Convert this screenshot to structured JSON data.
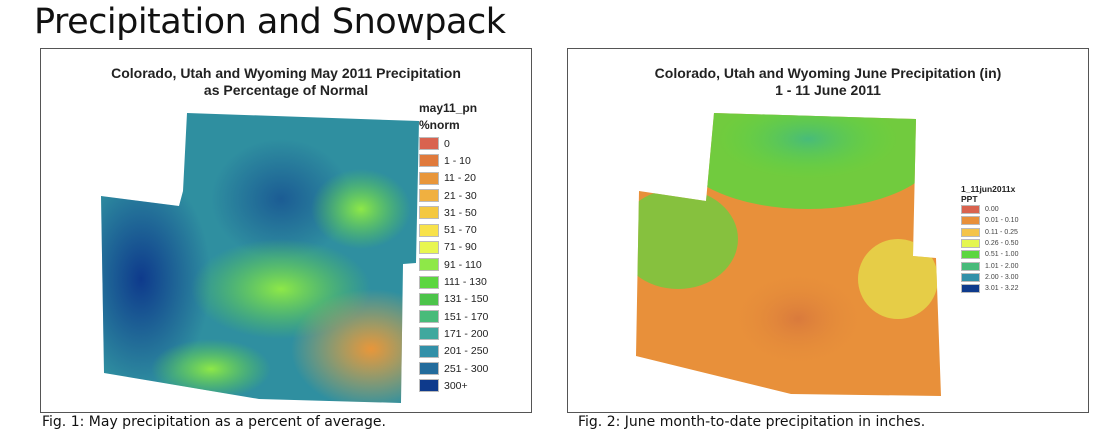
{
  "title": "Precipitation and Snowpack",
  "fig1": {
    "map_title_1": "Colorado, Utah and Wyoming May 2011 Precipitation",
    "map_title_2": "as Percentage of Normal",
    "legend_title": "may11_pn",
    "legend_unit": "%norm",
    "legend": [
      {
        "label": "0",
        "color": "#d9634f"
      },
      {
        "label": "1 - 10",
        "color": "#e07a3c"
      },
      {
        "label": "11 - 20",
        "color": "#e8963a"
      },
      {
        "label": "21 - 30",
        "color": "#f0b040"
      },
      {
        "label": "31 - 50",
        "color": "#f4c840"
      },
      {
        "label": "51 - 70",
        "color": "#f8e24a"
      },
      {
        "label": "71 - 90",
        "color": "#e8f650"
      },
      {
        "label": "91 - 110",
        "color": "#8ee848"
      },
      {
        "label": "111 - 130",
        "color": "#5cd640"
      },
      {
        "label": "131 - 150",
        "color": "#4cc44a"
      },
      {
        "label": "151 - 170",
        "color": "#48bb7a"
      },
      {
        "label": "171 - 200",
        "color": "#3fa89e"
      },
      {
        "label": "201 - 250",
        "color": "#3290a8"
      },
      {
        "label": "251 - 300",
        "color": "#236c9c"
      },
      {
        "label": "300+",
        "color": "#0e3a8c"
      }
    ],
    "caption": "Fig. 1: May precipitation as a percent of average."
  },
  "fig2": {
    "map_title_1": "Colorado, Utah and Wyoming June Precipitation (in)",
    "map_title_2": "1 - 11 June 2011",
    "legend_title": "1_11jun2011x",
    "legend_unit": "PPT",
    "legend": [
      {
        "label": "0.00",
        "color": "#d9634f"
      },
      {
        "label": "0.01 - 0.10",
        "color": "#e8903a"
      },
      {
        "label": "0.11 - 0.25",
        "color": "#f4c44a"
      },
      {
        "label": "0.26 - 0.50",
        "color": "#e4f650"
      },
      {
        "label": "0.51 - 1.00",
        "color": "#5cd640"
      },
      {
        "label": "1.01 - 2.00",
        "color": "#48bb7a"
      },
      {
        "label": "2.00 - 3.00",
        "color": "#3290a8"
      },
      {
        "label": "3.01 - 3.22",
        "color": "#0e3a8c"
      }
    ],
    "caption": "Fig. 2:  June month-to-date precipitation in inches."
  }
}
